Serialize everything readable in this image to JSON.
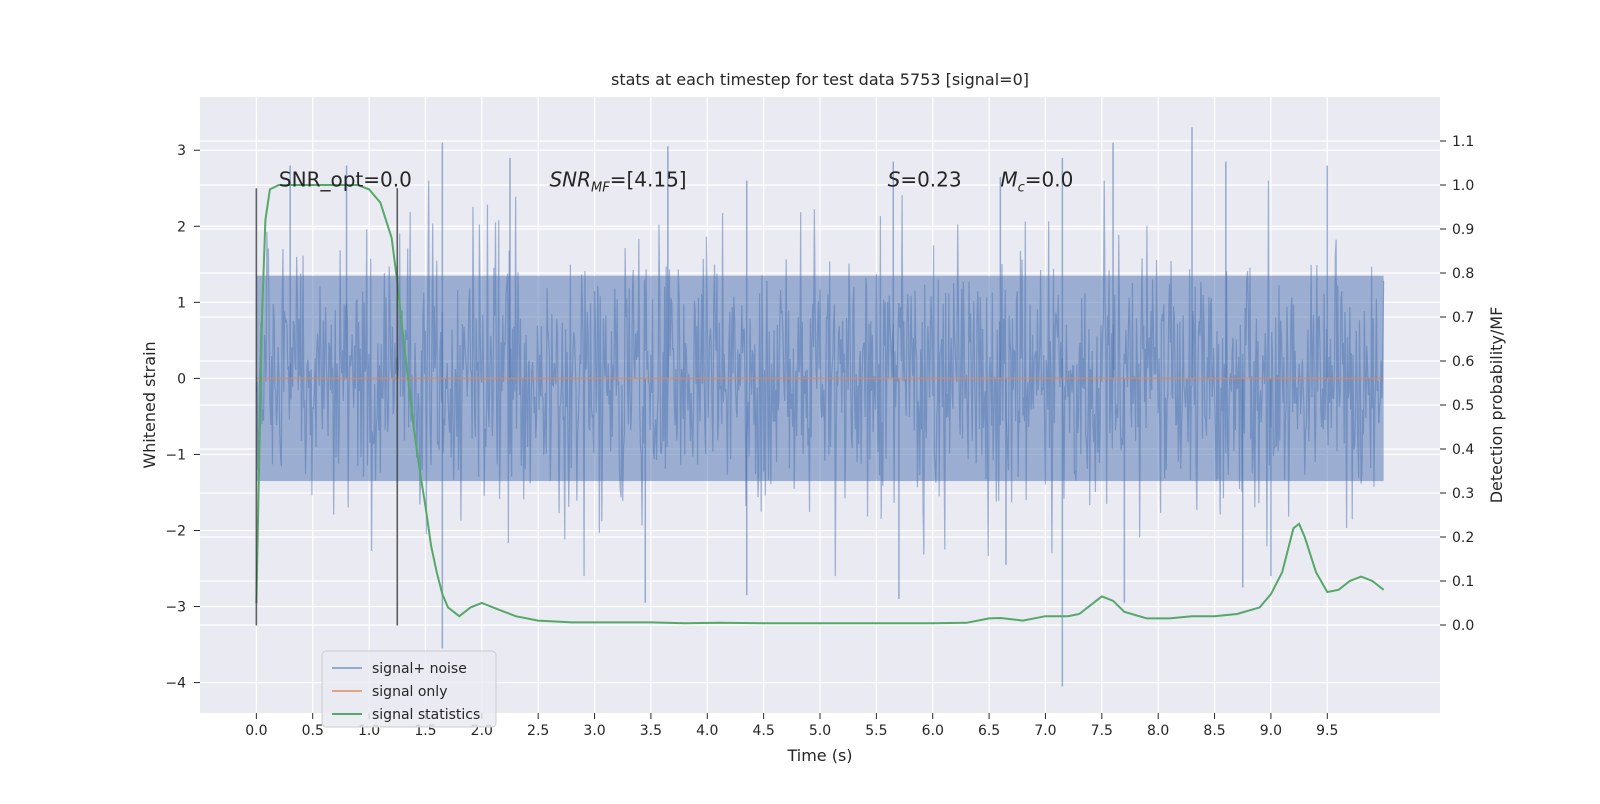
{
  "chart_data": {
    "type": "line",
    "title": "stats at each timestep for test data 5753 [signal=0]",
    "xlabel": "Time (s)",
    "ylabel": "Whitened strain",
    "y2label": "Detection probability/MF",
    "xlim": [
      -0.5,
      10.5
    ],
    "ylim": [
      -4.4,
      3.7
    ],
    "y2lim": [
      -0.2,
      1.2
    ],
    "x_ticks": [
      "0.0",
      "0.5",
      "1.0",
      "1.5",
      "2.0",
      "2.5",
      "3.0",
      "3.5",
      "4.0",
      "4.5",
      "5.0",
      "5.5",
      "6.0",
      "6.5",
      "7.0",
      "7.5",
      "8.0",
      "8.5",
      "9.0",
      "9.5"
    ],
    "y_ticks": [
      "3",
      "2",
      "1",
      "0",
      "−1",
      "−2",
      "−3",
      "−4"
    ],
    "y2_ticks": [
      "1.1",
      "1.0",
      "0.9",
      "0.8",
      "0.7",
      "0.6",
      "0.5",
      "0.4",
      "0.3",
      "0.2",
      "0.1",
      "0.0"
    ],
    "grid": true,
    "legend_location": "lower-left",
    "annotations": [
      {
        "text": "SNR_opt=0.0",
        "x": 0.2,
        "y": 2.6
      },
      {
        "text": "SNR",
        "sub": "MF",
        "suffix": "=[4.15]",
        "italic_prefix": true,
        "x": 2.6,
        "y": 2.6
      },
      {
        "text": "S",
        "suffix": "=0.23",
        "italic_prefix": true,
        "x": 5.6,
        "y": 2.6
      },
      {
        "text": "M",
        "sub": "c",
        "suffix": "=0.0",
        "italic_prefix": true,
        "x": 6.6,
        "y": 2.6
      }
    ],
    "markers_x": [
      0.0,
      1.25
    ],
    "marker_y_range": [
      -3.25,
      2.5
    ],
    "series": [
      {
        "name": "signal+ noise",
        "color": "#4c72b0",
        "alpha": 0.5,
        "axis": "left",
        "x_range": [
          0.0,
          10.0
        ],
        "typical_band": [
          -1.35,
          1.35
        ],
        "peaks_up": [
          [
            0.3,
            2.8
          ],
          [
            0.8,
            2.8
          ],
          [
            1.65,
            3.1
          ],
          [
            2.25,
            2.9
          ],
          [
            3.65,
            3.05
          ],
          [
            4.35,
            2.6
          ],
          [
            5.65,
            2.85
          ],
          [
            6.6,
            2.65
          ],
          [
            7.15,
            2.9
          ],
          [
            7.6,
            3.1
          ],
          [
            8.3,
            3.3
          ],
          [
            8.6,
            2.85
          ],
          [
            9.5,
            2.8
          ]
        ],
        "peaks_down": [
          [
            1.65,
            -3.55
          ],
          [
            3.45,
            -2.95
          ],
          [
            4.35,
            -2.85
          ],
          [
            5.7,
            -2.9
          ],
          [
            6.65,
            -2.45
          ],
          [
            7.15,
            -4.05
          ],
          [
            7.7,
            -2.95
          ],
          [
            8.75,
            -2.75
          ],
          [
            9.0,
            -2.6
          ]
        ]
      },
      {
        "name": "signal only",
        "color": "#dd8452",
        "axis": "left",
        "x": [
          0.0,
          10.0
        ],
        "y": [
          0.0,
          0.0
        ]
      },
      {
        "name": "signal statistics",
        "color": "#55a868",
        "axis": "right",
        "x": [
          0.0,
          0.05,
          0.08,
          0.12,
          0.2,
          0.3,
          0.5,
          0.7,
          0.9,
          1.0,
          1.1,
          1.2,
          1.25,
          1.3,
          1.35,
          1.4,
          1.45,
          1.5,
          1.55,
          1.6,
          1.65,
          1.7,
          1.8,
          1.9,
          2.0,
          2.1,
          2.2,
          2.3,
          2.5,
          2.8,
          3.2,
          3.5,
          3.8,
          4.1,
          4.5,
          5.0,
          5.5,
          6.0,
          6.3,
          6.5,
          6.6,
          6.8,
          7.0,
          7.2,
          7.3,
          7.4,
          7.5,
          7.6,
          7.7,
          7.9,
          8.1,
          8.3,
          8.5,
          8.7,
          8.9,
          9.0,
          9.1,
          9.2,
          9.25,
          9.3,
          9.4,
          9.5,
          9.6,
          9.7,
          9.8,
          9.9,
          10.0
        ],
        "y": [
          0.05,
          0.7,
          0.92,
          0.99,
          1.0,
          1.0,
          1.0,
          1.0,
          1.0,
          0.99,
          0.96,
          0.88,
          0.78,
          0.66,
          0.55,
          0.44,
          0.35,
          0.27,
          0.18,
          0.12,
          0.07,
          0.04,
          0.02,
          0.04,
          0.05,
          0.04,
          0.03,
          0.02,
          0.01,
          0.006,
          0.006,
          0.006,
          0.004,
          0.005,
          0.004,
          0.004,
          0.004,
          0.004,
          0.005,
          0.015,
          0.016,
          0.01,
          0.02,
          0.02,
          0.025,
          0.045,
          0.065,
          0.055,
          0.03,
          0.015,
          0.015,
          0.02,
          0.02,
          0.025,
          0.04,
          0.07,
          0.12,
          0.22,
          0.23,
          0.2,
          0.12,
          0.075,
          0.08,
          0.1,
          0.11,
          0.1,
          0.08
        ]
      }
    ]
  }
}
